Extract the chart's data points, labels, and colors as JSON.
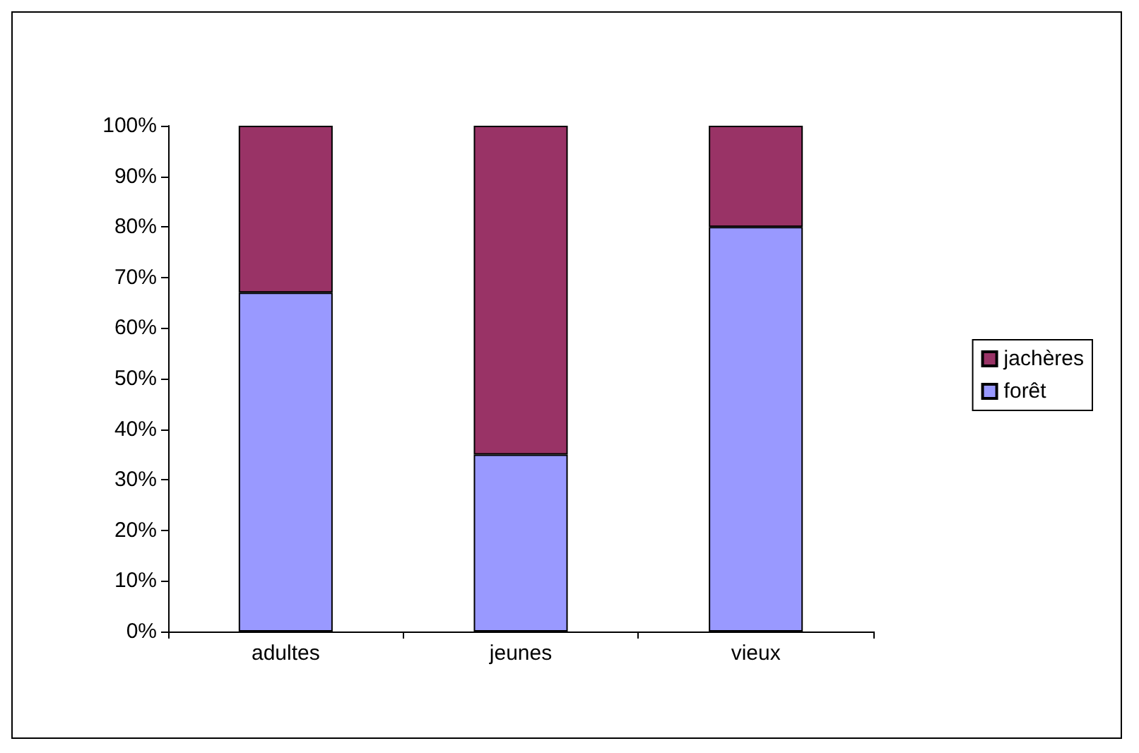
{
  "chart_data": {
    "type": "bar",
    "stacked": true,
    "categories": [
      "adultes",
      "jeunes",
      "vieux"
    ],
    "series": [
      {
        "name": "forêt",
        "color": "#9999ff",
        "values": [
          67,
          35,
          80
        ]
      },
      {
        "name": "jachères",
        "color": "#993366",
        "values": [
          33,
          65,
          20
        ]
      }
    ],
    "ylim": [
      0,
      100
    ],
    "yticks": [
      {
        "value": 0,
        "label": "0%"
      },
      {
        "value": 10,
        "label": "10%"
      },
      {
        "value": 20,
        "label": "20%"
      },
      {
        "value": 30,
        "label": "30%"
      },
      {
        "value": 40,
        "label": "40%"
      },
      {
        "value": 50,
        "label": "50%"
      },
      {
        "value": 60,
        "label": "60%"
      },
      {
        "value": 70,
        "label": "70%"
      },
      {
        "value": 80,
        "label": "80%"
      },
      {
        "value": 90,
        "label": "90%"
      },
      {
        "value": 100,
        "label": "100%"
      }
    ],
    "grid": false,
    "legend": "right"
  }
}
